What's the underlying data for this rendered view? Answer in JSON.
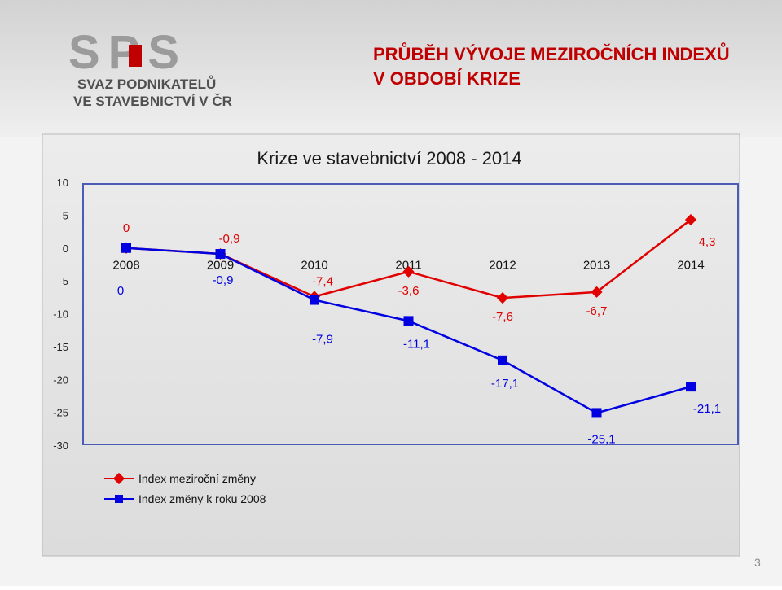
{
  "logo": {
    "letters": "SPS",
    "line1": "SVAZ PODNIKATELŮ",
    "line2": "VE STAVEBNICTVÍ V ČR"
  },
  "header": {
    "title_line1": "PRŮBĚH VÝVOJE MEZIROČNÍCH INDEXŮ",
    "title_line2": "V OBDOBÍ KRIZE"
  },
  "page_number": "3",
  "colors": {
    "accent": "#c00000",
    "series_red": "#e00000",
    "series_blue": "#0000e0"
  },
  "chart_data": {
    "type": "line",
    "title": "Krize ve stavebnictví 2008 - 2014",
    "x": [
      "2008",
      "2009",
      "2010",
      "2011",
      "2012",
      "2013",
      "2014"
    ],
    "ylim": [
      -30,
      10
    ],
    "yticks": [
      "10",
      "5",
      "0",
      "-5",
      "-10",
      "-15",
      "-20",
      "-25",
      "-30"
    ],
    "legend_position": "bottom-left",
    "series": [
      {
        "name": "Index meziroční změny",
        "color": "#e00000",
        "values": [
          0,
          -0.9,
          -7.4,
          -3.6,
          -7.6,
          -6.7,
          4.3
        ],
        "labels": [
          "0",
          "-0,9",
          "-7,4",
          "-3,6",
          "-7,6",
          "-6,7",
          "4,3"
        ]
      },
      {
        "name": "Index změny k roku 2008",
        "color": "#0000e0",
        "values": [
          0,
          -0.9,
          -7.9,
          -11.1,
          -17.1,
          -25.1,
          -21.1
        ],
        "labels": [
          "0",
          "-0,9",
          "-7,9",
          "-11,1",
          "-17,1",
          "-25,1",
          "-21,1"
        ]
      }
    ]
  }
}
